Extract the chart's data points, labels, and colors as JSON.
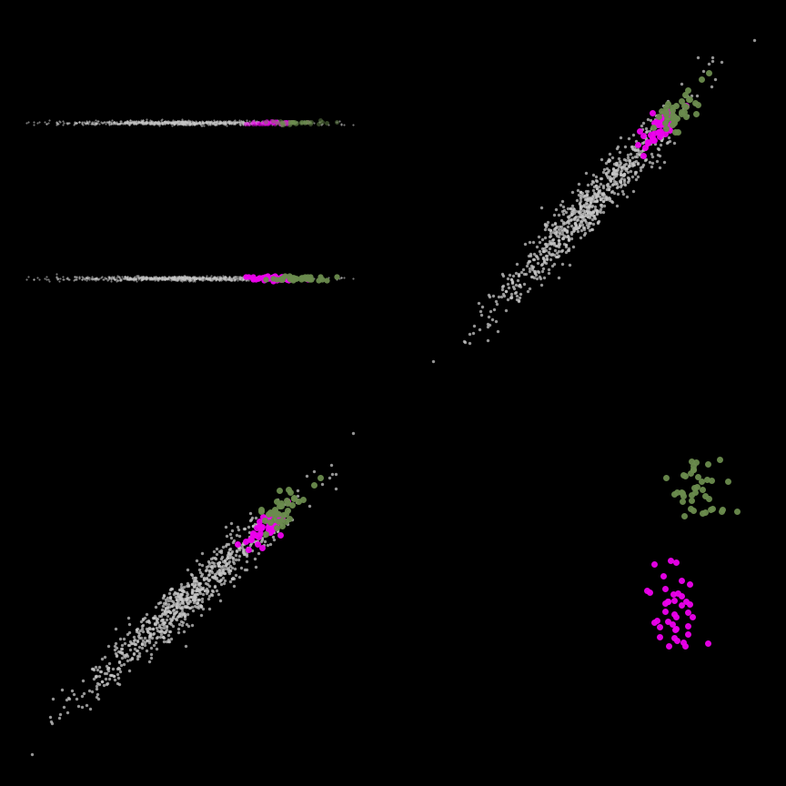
{
  "background_color": "#000000",
  "colors": {
    "main": "#c8c8c8",
    "group1": "#ee00ee",
    "group2": "#6b8c4e"
  },
  "n_main": 800,
  "n_group1": 40,
  "n_group2": 40,
  "seed": 42,
  "s_main": 6,
  "s_group": 25,
  "alpha_main": 0.75,
  "alpha_group": 0.95
}
